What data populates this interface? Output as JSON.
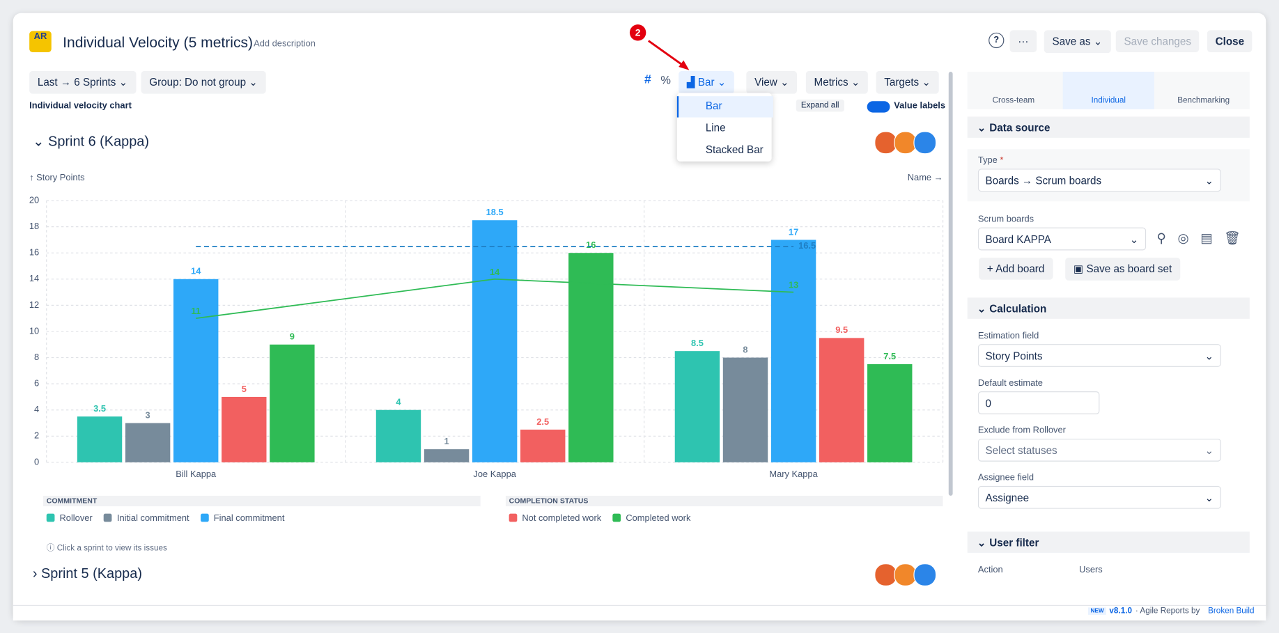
{
  "header": {
    "logo": "AR",
    "title": "Individual Velocity (5 metrics)",
    "add_description": "Add description",
    "badge": "2",
    "help": "?",
    "more": "···",
    "save_as": "Save as",
    "save_changes": "Save changes",
    "close": "Close"
  },
  "toolbar": {
    "period": "Last → 6 Sprints",
    "group": "Group: Do not group",
    "hash": "#",
    "percent": "%",
    "chart_type": "Bar",
    "view": "View",
    "metrics": "Metrics",
    "targets": "Targets"
  },
  "dropdown": [
    "Bar",
    "Line",
    "Stacked Bar"
  ],
  "subbar": {
    "chart_label": "Individual velocity chart",
    "expand": "Expand all",
    "value_labels": "Value labels"
  },
  "sprints": [
    "Sprint 6 (Kappa)",
    "Sprint 5 (Kappa)"
  ],
  "hint": "Click a sprint to view its issues",
  "chart_data": {
    "type": "bar",
    "y_label": "↑ Story Points",
    "x_label": "Name →",
    "categories": [
      "Bill Kappa",
      "Joe Kappa",
      "Mary Kappa"
    ],
    "ylim": [
      0,
      20
    ],
    "yticks": [
      0,
      2,
      4,
      6,
      8,
      10,
      12,
      14,
      16,
      18,
      20
    ],
    "grid": true,
    "groups": [
      {
        "title": "COMMITMENT",
        "series": [
          {
            "name": "Rollover",
            "color": "#2ec4b0",
            "values": [
              3.5,
              4,
              8.5
            ]
          },
          {
            "name": "Initial commitment",
            "color": "#778b9b",
            "values": [
              3,
              1,
              8
            ]
          },
          {
            "name": "Final commitment",
            "color": "#2ea8f8",
            "values": [
              14,
              18.5,
              17
            ]
          }
        ]
      },
      {
        "title": "COMPLETION STATUS",
        "series": [
          {
            "name": "Not completed work",
            "color": "#f26060",
            "values": [
              5,
              2.5,
              9.5
            ]
          },
          {
            "name": "Completed work",
            "color": "#2fbb55",
            "values": [
              9,
              16,
              7.5
            ]
          }
        ]
      }
    ],
    "overlay_line": {
      "color": "#2fbb55",
      "values": [
        11,
        14,
        13
      ]
    },
    "target_line": {
      "color": "#1f7fc4",
      "value": 16.5
    }
  },
  "sidebar": {
    "tabs": [
      "Cross-team",
      "Individual",
      "Benchmarking"
    ],
    "data_source": {
      "title": "Data source",
      "type_label": "Type",
      "required": "*",
      "type_value": "Boards → Scrum boards",
      "boards_label": "Scrum boards",
      "board": "Board KAPPA",
      "add_board": "Add board",
      "save_set": "Save as board set"
    },
    "calculation": {
      "title": "Calculation",
      "estimation_label": "Estimation field",
      "estimation": "Story Points",
      "default_label": "Default estimate",
      "default": "0",
      "exclude_label": "Exclude from Rollover",
      "exclude": "Select statuses",
      "assignee_label": "Assignee field",
      "assignee": "Assignee"
    },
    "user_filter": {
      "title": "User filter",
      "action": "Action",
      "users": "Users"
    }
  },
  "footer": {
    "new": "NEW",
    "version": "v8.1.0",
    "text": "· Agile Reports by",
    "link": "Broken Build"
  }
}
